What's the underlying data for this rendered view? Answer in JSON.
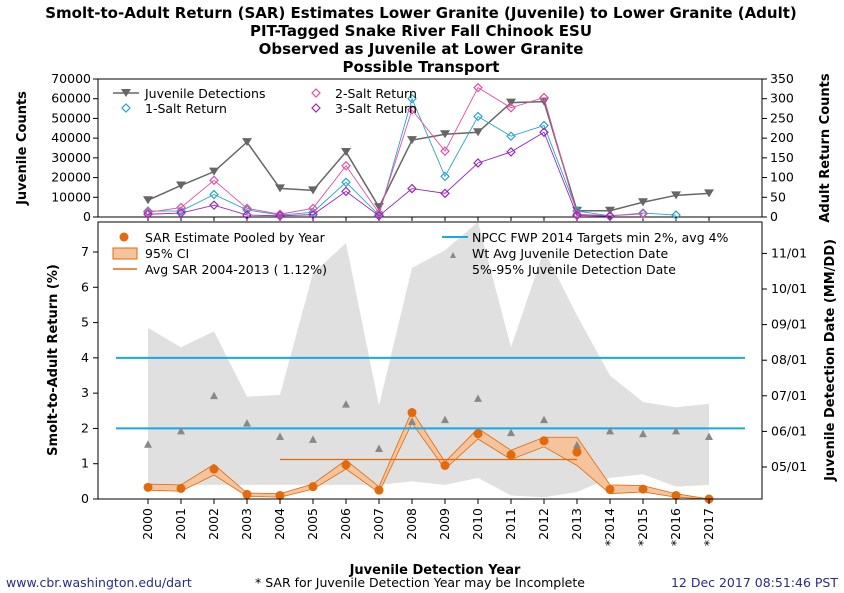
{
  "title_lines": [
    "Smolt-to-Adult Return (SAR) Estimates Lower Granite (Juvenile) to Lower Granite (Adult)",
    "PIT-Tagged Snake River Fall Chinook ESU",
    "Observed as Juvenile at Lower Granite",
    "Possible Transport"
  ],
  "footer": {
    "left": "www.cbr.washington.edu/dart",
    "center": "* SAR for Juvenile Detection Year may be Incomplete",
    "right": "12 Dec 2017 08:51:46 PST"
  },
  "chart_data": [
    {
      "type": "line",
      "panel": "top",
      "ylabel": "Juvenile Counts",
      "y2label": "Adult Return Counts",
      "ylim": [
        0,
        70000
      ],
      "yticks": [
        "0",
        "10000",
        "20000",
        "30000",
        "40000",
        "50000",
        "60000",
        "70000"
      ],
      "y2lim": [
        0,
        350
      ],
      "y2ticks": [
        "0",
        "50",
        "100",
        "150",
        "200",
        "250",
        "300",
        "350"
      ],
      "x": [
        2000,
        2001,
        2002,
        2003,
        2004,
        2005,
        2006,
        2007,
        2008,
        2009,
        2010,
        2011,
        2012,
        2013,
        2014,
        2015,
        2016,
        2017
      ],
      "legend_placement": "top-left",
      "series": [
        {
          "name": "Juvenile Detections",
          "axis": "left",
          "color": "#666666",
          "marker": "triangle-down",
          "values": [
            8500,
            16000,
            23000,
            38000,
            14500,
            13500,
            33000,
            5000,
            39000,
            42000,
            43000,
            58000,
            58500,
            3200,
            3200,
            7500,
            11000,
            12000
          ]
        },
        {
          "name": "1-Salt Return",
          "axis": "right",
          "color": "#2aa5c9",
          "marker": "diamond",
          "values": [
            15,
            15,
            57,
            18,
            5,
            12,
            88,
            5,
            300,
            103,
            255,
            205,
            232,
            15,
            3,
            10,
            5,
            null
          ]
        },
        {
          "name": "2-Salt Return",
          "axis": "right",
          "color": "#e34fa6",
          "marker": "diamond",
          "values": [
            12,
            24,
            93,
            22,
            7,
            22,
            130,
            10,
            272,
            167,
            328,
            277,
            303,
            7,
            3,
            8,
            null,
            null
          ]
        },
        {
          "name": "3-Salt Return",
          "axis": "right",
          "color": "#9b27b9",
          "marker": "diamond",
          "values": [
            7,
            10,
            30,
            5,
            3,
            6,
            65,
            3,
            72,
            60,
            137,
            165,
            215,
            4,
            2,
            null,
            null,
            null
          ]
        }
      ]
    },
    {
      "type": "line",
      "panel": "bottom",
      "xlabel": "Juvenile Detection Year",
      "ylabel": "Smolt-to-Adult Return (%)",
      "y2label": "Juvenile Detection Date (MM/DD)",
      "ylim": [
        0,
        7.85
      ],
      "yticks": [
        "0",
        "1",
        "2",
        "3",
        "4",
        "5",
        "6",
        "7"
      ],
      "y2ticks": [
        "05/01",
        "06/01",
        "07/01",
        "08/01",
        "09/01",
        "10/01",
        "11/01"
      ],
      "categories": [
        "2000",
        "2001",
        "2002",
        "2003",
        "2004",
        "2005",
        "2006",
        "2007",
        "2008",
        "2009",
        "2010",
        "2011",
        "2012",
        "2013",
        "*2014",
        "*2015",
        "*2016",
        "*2017"
      ],
      "legend_placement": "top",
      "sar": {
        "name": "SAR Estimate Pooled by Year",
        "color": "#e26a0c",
        "values": [
          0.33,
          0.3,
          0.85,
          0.13,
          0.1,
          0.35,
          0.97,
          0.25,
          2.45,
          0.95,
          1.85,
          1.25,
          1.65,
          1.33,
          0.27,
          0.28,
          0.1,
          0.0
        ]
      },
      "ci": {
        "name": "95% CI",
        "color": "#f5c39c",
        "lower": [
          0.25,
          0.22,
          0.68,
          0.08,
          0.05,
          0.28,
          0.85,
          0.18,
          2.15,
          0.85,
          1.7,
          1.12,
          1.48,
          0.95,
          0.15,
          0.2,
          0.05,
          0.0
        ],
        "upper": [
          0.42,
          0.4,
          0.98,
          0.17,
          0.15,
          0.43,
          1.1,
          0.35,
          2.5,
          1.05,
          2.0,
          1.38,
          1.75,
          1.75,
          0.4,
          0.38,
          0.15,
          0.0
        ]
      },
      "avg_sar": {
        "name": "Avg SAR 2004-2013 ( 1.12%)",
        "value": 1.12,
        "x_from": 2004,
        "x_to": 2013,
        "color": "#e26a0c"
      },
      "targets": {
        "name": "NPCC FWP 2014 Targets min 2%, avg 4%",
        "values": [
          2,
          4
        ],
        "color": "#1aa7e6"
      },
      "wt_avg_date": {
        "name": "Wt Avg Juvenile Detection Date",
        "color": "#888888",
        "values": [
          1.55,
          1.93,
          2.93,
          2.15,
          1.77,
          1.69,
          2.69,
          1.43,
          2.2,
          2.25,
          2.85,
          1.88,
          2.25,
          1.53,
          1.93,
          1.85,
          1.93,
          1.77
        ]
      },
      "date_band": {
        "name": "5%-95% Juvenile Detection Date",
        "color": "#e0e0e0",
        "lower": [
          0.4,
          0.4,
          0.4,
          0.4,
          0.4,
          0.4,
          0.4,
          0.4,
          0.5,
          0.4,
          0.6,
          0.1,
          0.05,
          0.2,
          0.6,
          0.7,
          0.35,
          0.4
        ],
        "upper": [
          4.85,
          4.3,
          4.75,
          2.9,
          2.95,
          6.4,
          7.25,
          2.65,
          6.55,
          7.05,
          8.0,
          4.3,
          7.05,
          5.2,
          3.5,
          2.75,
          2.6,
          2.7
        ]
      }
    }
  ]
}
